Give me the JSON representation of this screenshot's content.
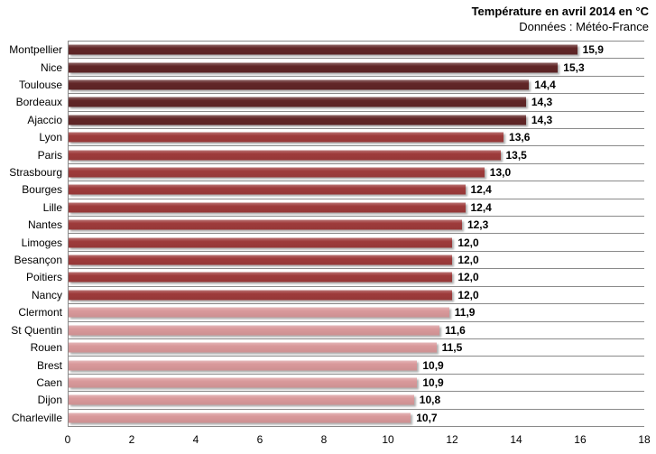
{
  "chart_data": {
    "type": "bar",
    "orientation": "horizontal",
    "title": "Température en avril  2014 en °C",
    "subtitle": "Données : Météo-France",
    "categories": [
      "Montpellier",
      "Nice",
      "Toulouse",
      "Bordeaux",
      "Ajaccio",
      "Lyon",
      "Paris",
      "Strasbourg",
      "Bourges",
      "Lille",
      "Nantes",
      "Limoges",
      "Besançon",
      "Poitiers",
      "Nancy",
      "Clermont",
      "St Quentin",
      "Rouen",
      "Brest",
      "Caen",
      "Dijon",
      "Charleville"
    ],
    "values": [
      15.9,
      15.3,
      14.4,
      14.3,
      14.3,
      13.6,
      13.5,
      13.0,
      12.4,
      12.4,
      12.3,
      12.0,
      12.0,
      12.0,
      12.0,
      11.9,
      11.6,
      11.5,
      10.9,
      10.9,
      10.8,
      10.7
    ],
    "value_labels": [
      "15,9",
      "15,3",
      "14,4",
      "14,3",
      "14,3",
      "13,6",
      "13,5",
      "13,0",
      "12,4",
      "12,4",
      "12,3",
      "12,0",
      "12,0",
      "12,0",
      "12,0",
      "11,9",
      "11,6",
      "11,5",
      "10,9",
      "10,9",
      "10,8",
      "10,7"
    ],
    "color_groups": [
      "dark",
      "dark",
      "dark",
      "dark",
      "dark",
      "medium",
      "medium",
      "medium",
      "medium",
      "medium",
      "medium",
      "medium",
      "medium",
      "medium",
      "medium",
      "light",
      "light",
      "light",
      "light",
      "light",
      "light",
      "light"
    ],
    "colors": {
      "dark": "#612627",
      "medium": "#9E3B3B",
      "light": "#D9999B"
    },
    "xlabel": "",
    "ylabel": "",
    "xlim": [
      0,
      18
    ],
    "x_ticks": [
      "0",
      "2",
      "4",
      "6",
      "8",
      "10",
      "12",
      "14",
      "16",
      "18"
    ],
    "grid": "horizontal category separator lines, gray",
    "legend": "none",
    "gridline_color": "#8a8a8a"
  }
}
